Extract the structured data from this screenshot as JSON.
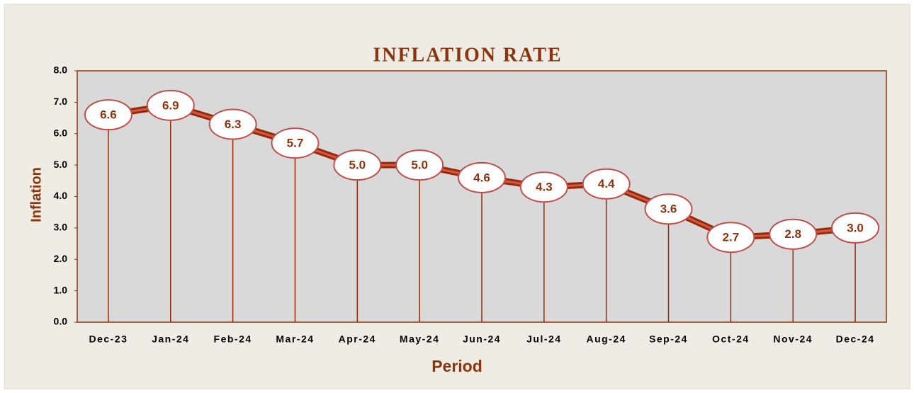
{
  "chart_data": {
    "type": "line",
    "title": "INFLATION RATE",
    "x_label": "Period",
    "y_label": "Inflation",
    "categories": [
      "Dec-23",
      "Jan-24",
      "Feb-24",
      "Mar-24",
      "Apr-24",
      "May-24",
      "Jun-24",
      "Jul-24",
      "Aug-24",
      "Sep-24",
      "Oct-24",
      "Nov-24",
      "Dec-24"
    ],
    "values": [
      6.6,
      6.9,
      6.3,
      5.7,
      5.0,
      5.0,
      4.6,
      4.3,
      4.4,
      3.6,
      2.7,
      2.8,
      3.0
    ],
    "value_labels": [
      "6.6",
      "6.9",
      "6.3",
      "5.7",
      "5.0",
      "5.0",
      "4.6",
      "4.3",
      "4.4",
      "3.6",
      "2.7",
      "2.8",
      "3.0"
    ],
    "color": "#9a2a06",
    "ylim": [
      0,
      8
    ],
    "yticks": [
      {
        "value": 0,
        "label": "0.0"
      },
      {
        "value": 1,
        "label": "1.0"
      },
      {
        "value": 2,
        "label": "2.0"
      },
      {
        "value": 3,
        "label": "3.0"
      },
      {
        "value": 4,
        "label": "4.0"
      },
      {
        "value": 5,
        "label": "5.0"
      },
      {
        "value": 6,
        "label": "6.0"
      },
      {
        "value": 7,
        "label": "7.0"
      },
      {
        "value": 8,
        "label": "8.0"
      }
    ],
    "drop_lines": true
  }
}
